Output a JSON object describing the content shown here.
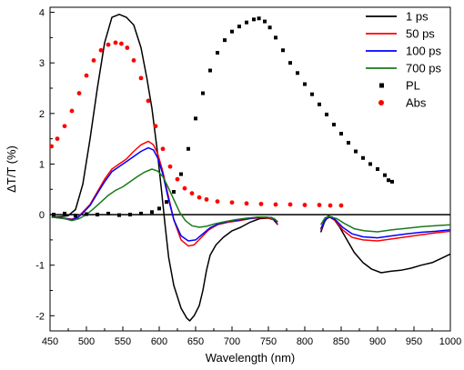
{
  "chart_data": {
    "type": "line",
    "title": "",
    "xlabel": "Wavelength (nm)",
    "ylabel": "ΔT/T (%)",
    "xlim": [
      450,
      1000
    ],
    "ylim": [
      -2.3,
      4.1
    ],
    "xticks": [
      450,
      500,
      550,
      600,
      650,
      700,
      750,
      800,
      850,
      900,
      950,
      1000
    ],
    "yticks": [
      -2,
      -1,
      0,
      1,
      2,
      3,
      4
    ],
    "xtick_labels": [
      "450",
      "500",
      "550",
      "600",
      "650",
      "700",
      "750",
      "800",
      "850",
      "900",
      "950",
      "1000"
    ],
    "ytick_labels": [
      "-2",
      "-1",
      "0",
      "1",
      "2",
      "3",
      "4"
    ],
    "grid": false,
    "legend_position": "top-right",
    "zero_line": true,
    "series": [
      {
        "name": "1 ps",
        "color": "#000000",
        "style": "line",
        "segments": [
          [
            [
              452,
              -0.05
            ],
            [
              465,
              -0.04
            ],
            [
              475,
              -0.02
            ],
            [
              485,
              0.1
            ],
            [
              495,
              0.6
            ],
            [
              505,
              1.5
            ],
            [
              515,
              2.5
            ],
            [
              525,
              3.4
            ],
            [
              535,
              3.9
            ],
            [
              545,
              3.96
            ],
            [
              555,
              3.9
            ],
            [
              565,
              3.75
            ],
            [
              575,
              3.3
            ],
            [
              583,
              2.7
            ],
            [
              590,
              2.1
            ],
            [
              597,
              1.3
            ],
            [
              603,
              0.5
            ],
            [
              608,
              -0.2
            ],
            [
              613,
              -0.85
            ],
            [
              620,
              -1.4
            ],
            [
              630,
              -1.85
            ],
            [
              638,
              -2.05
            ],
            [
              642,
              -2.1
            ],
            [
              648,
              -2.0
            ],
            [
              655,
              -1.8
            ],
            [
              660,
              -1.5
            ],
            [
              665,
              -1.1
            ],
            [
              670,
              -0.8
            ],
            [
              678,
              -0.6
            ],
            [
              688,
              -0.45
            ],
            [
              700,
              -0.32
            ],
            [
              712,
              -0.25
            ],
            [
              725,
              -0.15
            ],
            [
              738,
              -0.08
            ],
            [
              750,
              -0.07
            ],
            [
              757,
              -0.1
            ],
            [
              763,
              -0.2
            ]
          ],
          [
            [
              822,
              -0.35
            ],
            [
              827,
              -0.15
            ],
            [
              832,
              -0.03
            ],
            [
              838,
              -0.05
            ],
            [
              848,
              -0.25
            ],
            [
              858,
              -0.5
            ],
            [
              868,
              -0.75
            ],
            [
              880,
              -0.95
            ],
            [
              892,
              -1.08
            ],
            [
              905,
              -1.15
            ],
            [
              918,
              -1.12
            ],
            [
              932,
              -1.1
            ],
            [
              946,
              -1.06
            ],
            [
              960,
              -1.0
            ],
            [
              975,
              -0.95
            ],
            [
              990,
              -0.85
            ],
            [
              1000,
              -0.78
            ]
          ]
        ]
      },
      {
        "name": "50 ps",
        "color": "#ff0000",
        "style": "line",
        "segments": [
          [
            [
              452,
              -0.05
            ],
            [
              470,
              -0.07
            ],
            [
              480,
              -0.09
            ],
            [
              488,
              -0.05
            ],
            [
              495,
              0.05
            ],
            [
              505,
              0.2
            ],
            [
              515,
              0.45
            ],
            [
              525,
              0.7
            ],
            [
              535,
              0.9
            ],
            [
              545,
              1.0
            ],
            [
              555,
              1.1
            ],
            [
              565,
              1.25
            ],
            [
              575,
              1.38
            ],
            [
              585,
              1.45
            ],
            [
              592,
              1.38
            ],
            [
              598,
              1.2
            ],
            [
              605,
              0.85
            ],
            [
              612,
              0.4
            ],
            [
              620,
              -0.1
            ],
            [
              630,
              -0.5
            ],
            [
              640,
              -0.62
            ],
            [
              648,
              -0.6
            ],
            [
              658,
              -0.45
            ],
            [
              668,
              -0.3
            ],
            [
              680,
              -0.2
            ],
            [
              695,
              -0.15
            ],
            [
              710,
              -0.12
            ],
            [
              725,
              -0.08
            ],
            [
              740,
              -0.06
            ],
            [
              752,
              -0.07
            ],
            [
              760,
              -0.12
            ],
            [
              763,
              -0.2
            ]
          ],
          [
            [
              822,
              -0.3
            ],
            [
              828,
              -0.1
            ],
            [
              834,
              -0.05
            ],
            [
              842,
              -0.12
            ],
            [
              852,
              -0.3
            ],
            [
              865,
              -0.45
            ],
            [
              880,
              -0.5
            ],
            [
              900,
              -0.52
            ],
            [
              920,
              -0.48
            ],
            [
              940,
              -0.44
            ],
            [
              960,
              -0.4
            ],
            [
              980,
              -0.36
            ],
            [
              1000,
              -0.33
            ]
          ]
        ]
      },
      {
        "name": "100 ps",
        "color": "#0000ff",
        "style": "line",
        "segments": [
          [
            [
              452,
              -0.05
            ],
            [
              470,
              -0.08
            ],
            [
              480,
              -0.1
            ],
            [
              488,
              -0.06
            ],
            [
              495,
              0.03
            ],
            [
              505,
              0.18
            ],
            [
              515,
              0.42
            ],
            [
              525,
              0.65
            ],
            [
              535,
              0.85
            ],
            [
              545,
              0.95
            ],
            [
              555,
              1.05
            ],
            [
              565,
              1.15
            ],
            [
              575,
              1.25
            ],
            [
              585,
              1.32
            ],
            [
              592,
              1.28
            ],
            [
              598,
              1.12
            ],
            [
              605,
              0.8
            ],
            [
              612,
              0.35
            ],
            [
              620,
              -0.1
            ],
            [
              630,
              -0.42
            ],
            [
              640,
              -0.52
            ],
            [
              650,
              -0.5
            ],
            [
              660,
              -0.38
            ],
            [
              670,
              -0.26
            ],
            [
              682,
              -0.18
            ],
            [
              697,
              -0.13
            ],
            [
              712,
              -0.1
            ],
            [
              727,
              -0.07
            ],
            [
              742,
              -0.05
            ],
            [
              755,
              -0.06
            ],
            [
              762,
              -0.15
            ]
          ],
          [
            [
              822,
              -0.28
            ],
            [
              828,
              -0.1
            ],
            [
              834,
              -0.05
            ],
            [
              842,
              -0.1
            ],
            [
              852,
              -0.25
            ],
            [
              865,
              -0.38
            ],
            [
              880,
              -0.44
            ],
            [
              900,
              -0.46
            ],
            [
              920,
              -0.42
            ],
            [
              940,
              -0.38
            ],
            [
              960,
              -0.35
            ],
            [
              980,
              -0.33
            ],
            [
              1000,
              -0.3
            ]
          ]
        ]
      },
      {
        "name": "700 ps",
        "color": "#1a7a1a",
        "style": "line",
        "segments": [
          [
            [
              452,
              -0.05
            ],
            [
              470,
              -0.08
            ],
            [
              480,
              -0.12
            ],
            [
              490,
              -0.08
            ],
            [
              500,
              0.0
            ],
            [
              510,
              0.12
            ],
            [
              520,
              0.25
            ],
            [
              530,
              0.38
            ],
            [
              540,
              0.48
            ],
            [
              550,
              0.55
            ],
            [
              560,
              0.65
            ],
            [
              570,
              0.75
            ],
            [
              580,
              0.84
            ],
            [
              590,
              0.9
            ],
            [
              598,
              0.86
            ],
            [
              605,
              0.75
            ],
            [
              612,
              0.55
            ],
            [
              620,
              0.3
            ],
            [
              628,
              0.05
            ],
            [
              636,
              -0.12
            ],
            [
              645,
              -0.22
            ],
            [
              655,
              -0.25
            ],
            [
              665,
              -0.23
            ],
            [
              677,
              -0.18
            ],
            [
              690,
              -0.14
            ],
            [
              705,
              -0.1
            ],
            [
              720,
              -0.07
            ],
            [
              735,
              -0.05
            ],
            [
              748,
              -0.05
            ],
            [
              758,
              -0.08
            ],
            [
              763,
              -0.14
            ]
          ],
          [
            [
              822,
              -0.2
            ],
            [
              828,
              -0.06
            ],
            [
              834,
              -0.04
            ],
            [
              844,
              -0.08
            ],
            [
              855,
              -0.18
            ],
            [
              868,
              -0.28
            ],
            [
              882,
              -0.32
            ],
            [
              900,
              -0.34
            ],
            [
              920,
              -0.3
            ],
            [
              940,
              -0.27
            ],
            [
              960,
              -0.24
            ],
            [
              980,
              -0.22
            ],
            [
              1000,
              -0.2
            ]
          ]
        ]
      },
      {
        "name": "PL",
        "color": "#000000",
        "style": "square-markers",
        "points": [
          [
            455,
            0.0
          ],
          [
            470,
            0.02
          ],
          [
            485,
            -0.02
          ],
          [
            500,
            0.01
          ],
          [
            515,
            0.0
          ],
          [
            530,
            0.02
          ],
          [
            545,
            -0.01
          ],
          [
            560,
            0.0
          ],
          [
            575,
            0.02
          ],
          [
            590,
            0.05
          ],
          [
            600,
            0.12
          ],
          [
            610,
            0.25
          ],
          [
            620,
            0.45
          ],
          [
            630,
            0.8
          ],
          [
            640,
            1.3
          ],
          [
            650,
            1.9
          ],
          [
            660,
            2.4
          ],
          [
            670,
            2.85
          ],
          [
            680,
            3.2
          ],
          [
            690,
            3.45
          ],
          [
            700,
            3.62
          ],
          [
            710,
            3.72
          ],
          [
            720,
            3.8
          ],
          [
            730,
            3.86
          ],
          [
            737,
            3.88
          ],
          [
            745,
            3.82
          ],
          [
            752,
            3.7
          ],
          [
            760,
            3.5
          ],
          [
            770,
            3.25
          ],
          [
            780,
            3.0
          ],
          [
            790,
            2.8
          ],
          [
            800,
            2.58
          ],
          [
            810,
            2.38
          ],
          [
            820,
            2.18
          ],
          [
            830,
            1.98
          ],
          [
            840,
            1.78
          ],
          [
            850,
            1.6
          ],
          [
            860,
            1.42
          ],
          [
            870,
            1.25
          ],
          [
            880,
            1.12
          ],
          [
            890,
            1.0
          ],
          [
            900,
            0.9
          ],
          [
            910,
            0.78
          ],
          [
            915,
            0.68
          ],
          [
            920,
            0.65
          ]
        ]
      },
      {
        "name": "Abs",
        "color": "#ff0000",
        "style": "circle-markers",
        "points": [
          [
            452,
            1.35
          ],
          [
            460,
            1.5
          ],
          [
            470,
            1.75
          ],
          [
            480,
            2.05
          ],
          [
            490,
            2.4
          ],
          [
            500,
            2.75
          ],
          [
            510,
            3.05
          ],
          [
            520,
            3.25
          ],
          [
            530,
            3.36
          ],
          [
            540,
            3.4
          ],
          [
            548,
            3.38
          ],
          [
            556,
            3.3
          ],
          [
            565,
            3.05
          ],
          [
            575,
            2.7
          ],
          [
            585,
            2.25
          ],
          [
            595,
            1.75
          ],
          [
            605,
            1.3
          ],
          [
            615,
            0.95
          ],
          [
            625,
            0.7
          ],
          [
            635,
            0.52
          ],
          [
            645,
            0.42
          ],
          [
            655,
            0.34
          ],
          [
            665,
            0.3
          ],
          [
            680,
            0.26
          ],
          [
            700,
            0.24
          ],
          [
            720,
            0.22
          ],
          [
            740,
            0.21
          ],
          [
            760,
            0.2
          ],
          [
            780,
            0.2
          ],
          [
            800,
            0.19
          ],
          [
            820,
            0.19
          ],
          [
            835,
            0.18
          ],
          [
            850,
            0.18
          ]
        ]
      }
    ]
  }
}
